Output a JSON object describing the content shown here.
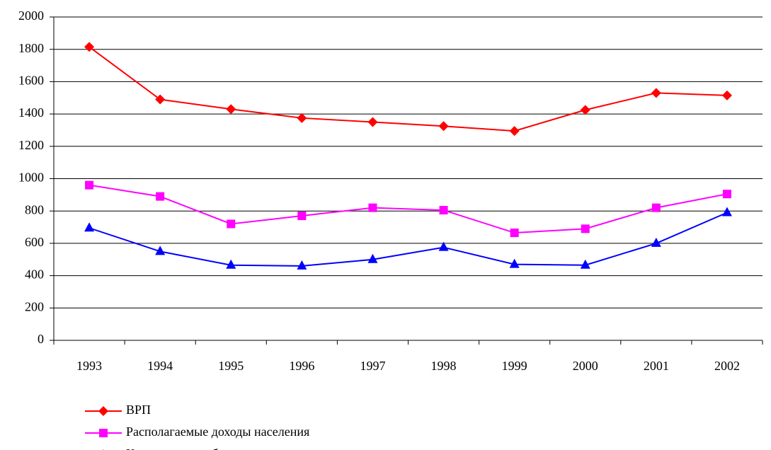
{
  "chart_data": {
    "type": "line",
    "categories": [
      "1993",
      "1994",
      "1995",
      "1996",
      "1997",
      "1998",
      "1999",
      "2000",
      "2001",
      "2002"
    ],
    "series": [
      {
        "name": "ВРП",
        "color": "#ff0000",
        "marker": "diamond",
        "values": [
          1815,
          1490,
          1430,
          1375,
          1350,
          1325,
          1295,
          1425,
          1530,
          1515
        ]
      },
      {
        "name": "Располагаемые доходы населения",
        "color": "#ff00ff",
        "marker": "square",
        "values": [
          960,
          890,
          720,
          770,
          820,
          805,
          665,
          690,
          820,
          905
        ]
      },
      {
        "name": "Конечное потребление с учетом расходов за пределами региона",
        "color": "#0000ff",
        "marker": "triangle",
        "values": [
          695,
          550,
          465,
          460,
          500,
          575,
          470,
          465,
          600,
          790
        ]
      }
    ],
    "ylim": [
      0,
      2000
    ],
    "yticks": [
      0,
      200,
      400,
      600,
      800,
      1000,
      1200,
      1400,
      1600,
      1800,
      2000
    ],
    "grid": true,
    "legend": "bottom-left"
  }
}
